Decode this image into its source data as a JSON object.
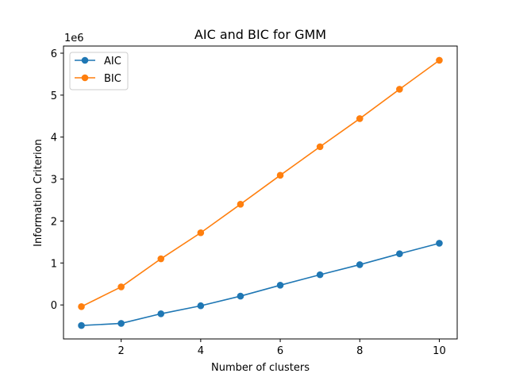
{
  "chart_data": {
    "type": "line",
    "title": "AIC and BIC for GMM",
    "xlabel": "Number of clusters",
    "ylabel": "Information Criterion",
    "y_scale_label": "1e6",
    "y_scale_factor": 1000000,
    "xlim": [
      0.55,
      10.45
    ],
    "ylim": [
      -810000,
      6170000
    ],
    "x_ticks": [
      2,
      4,
      6,
      8,
      10
    ],
    "x_tick_labels": [
      "2",
      "4",
      "6",
      "8",
      "10"
    ],
    "y_ticks": [
      0,
      1000000,
      2000000,
      3000000,
      4000000,
      5000000,
      6000000
    ],
    "y_tick_labels": [
      "0",
      "1",
      "2",
      "3",
      "4",
      "5",
      "6"
    ],
    "grid": false,
    "legend_position": "top-left",
    "x": [
      1,
      2,
      3,
      4,
      5,
      6,
      7,
      8,
      9,
      10
    ],
    "series": [
      {
        "name": "AIC",
        "color": "#1f77b4",
        "values": [
          -490000,
          -440000,
          -210000,
          -20000,
          210000,
          470000,
          720000,
          960000,
          1220000,
          1470000
        ]
      },
      {
        "name": "BIC",
        "color": "#ff7f0e",
        "values": [
          -40000,
          430000,
          1100000,
          1720000,
          2400000,
          3090000,
          3770000,
          4440000,
          5140000,
          5830000
        ]
      }
    ]
  }
}
